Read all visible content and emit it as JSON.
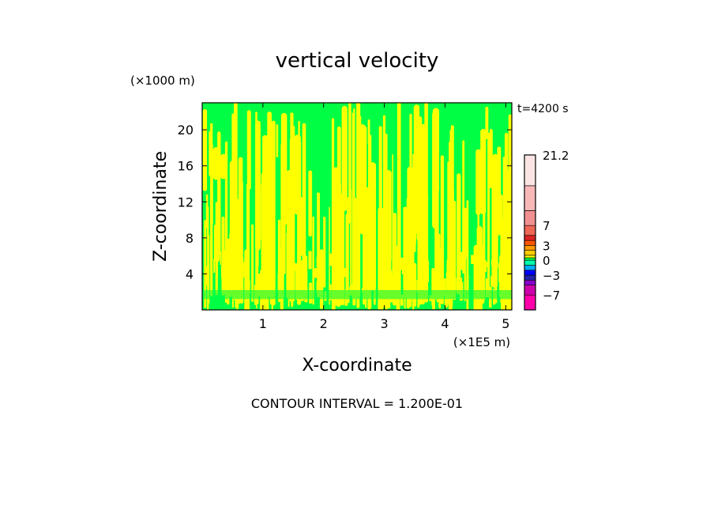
{
  "chart_data": {
    "type": "heatmap",
    "title": "vertical velocity",
    "xlabel": "X-coordinate",
    "ylabel": "Z-coordinate",
    "x_unit": "(×1E5 m)",
    "y_unit": "(×1000 m)",
    "time_label": "t=4200 s",
    "footer": "CONTOUR INTERVAL = 1.200E-01",
    "xlim": [
      0,
      5.1
    ],
    "ylim": [
      0,
      23
    ],
    "x_ticks": [
      1,
      2,
      3,
      4,
      5
    ],
    "y_ticks": [
      4,
      8,
      12,
      16,
      20
    ],
    "grid": false,
    "field_colors": {
      "positive": "#ffff00",
      "negative": "#00ff44"
    },
    "colorbar": {
      "range": [
        -10,
        21.2
      ],
      "tick_labels": [
        {
          "value": 21.2,
          "text": "21.2"
        },
        {
          "value": 7,
          "text": "7"
        },
        {
          "value": 3,
          "text": "3"
        },
        {
          "value": 0,
          "text": "0"
        },
        {
          "value": -3,
          "text": "-3"
        },
        {
          "value": -7,
          "text": "-7"
        }
      ],
      "bands": [
        {
          "from": -10,
          "to": -7,
          "color": "#ff00aa"
        },
        {
          "from": -7,
          "to": -5,
          "color": "#cc00aa"
        },
        {
          "from": -5,
          "to": -4,
          "color": "#8800cc"
        },
        {
          "from": -4,
          "to": -3,
          "color": "#2222aa"
        },
        {
          "from": -3,
          "to": -2,
          "color": "#0000ff"
        },
        {
          "from": -2,
          "to": -1,
          "color": "#00aaff"
        },
        {
          "from": -1,
          "to": 0,
          "color": "#00ffaa"
        },
        {
          "from": 0,
          "to": 0.5,
          "color": "#00ff44"
        },
        {
          "from": 0.5,
          "to": 1,
          "color": "#ffff00"
        },
        {
          "from": 1,
          "to": 2,
          "color": "#ffcc00"
        },
        {
          "from": 2,
          "to": 3,
          "color": "#ff9900"
        },
        {
          "from": 3,
          "to": 4,
          "color": "#ff5500"
        },
        {
          "from": 4,
          "to": 5,
          "color": "#dd2222"
        },
        {
          "from": 5,
          "to": 7,
          "color": "#ee6655"
        },
        {
          "from": 7,
          "to": 10,
          "color": "#f09090"
        },
        {
          "from": 10,
          "to": 15,
          "color": "#f8b8b8"
        },
        {
          "from": 15,
          "to": 21.2,
          "color": "#fde4e4"
        }
      ]
    }
  }
}
